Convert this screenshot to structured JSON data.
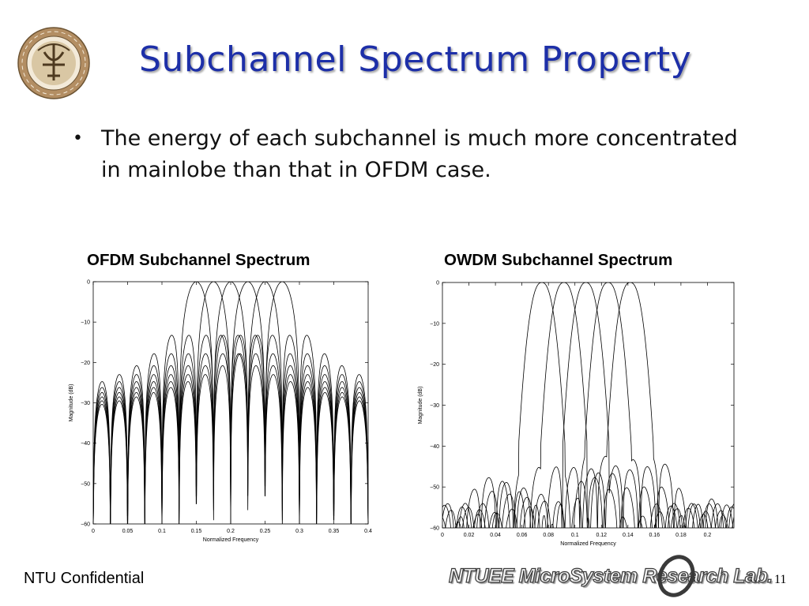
{
  "slide": {
    "title": "Subchannel Spectrum Property",
    "bullets": [
      "The energy of each subchannel is much more concentrated in mainlobe than that in OFDM case."
    ],
    "seal_text": "國立臺灣大學",
    "footer": {
      "confidential": "NTU Confidential",
      "lab_name": "NTUEE MicroSystem Research Lab.",
      "page_number": "11"
    }
  },
  "chart_data": [
    {
      "type": "line",
      "title": "OFDM Subchannel Spectrum",
      "xlabel": "Normalized Frequency",
      "ylabel": "Magnitude (dB)",
      "xlim": [
        0,
        0.4
      ],
      "ylim": [
        -60,
        0
      ],
      "xticks": [
        "0",
        "0.05",
        "0.1",
        "0.15",
        "0.2",
        "0.25",
        "0.3",
        "0.35",
        "0.4"
      ],
      "yticks": [
        "0",
        "−10",
        "−20",
        "−30",
        "−40",
        "−50",
        "−60"
      ],
      "grid": false,
      "subchannel_spacing": 0.025,
      "series": [
        {
          "center": 0.15
        },
        {
          "center": 0.175
        },
        {
          "center": 0.2
        },
        {
          "center": 0.225
        },
        {
          "center": 0.25
        },
        {
          "center": 0.275
        }
      ]
    },
    {
      "type": "line",
      "title": "OWDM Subchannel Spectrum",
      "xlabel": "Normalized Frequency",
      "ylabel": "Magnitude (dB)",
      "xlim": [
        0,
        0.22
      ],
      "ylim": [
        -60,
        0
      ],
      "xticks": [
        "0",
        "0.02",
        "0.04",
        "0.06",
        "0.08",
        "0.1",
        "0.12",
        "0.14",
        "0.16",
        "0.18",
        "0.2"
      ],
      "yticks": [
        "0",
        "−10",
        "−20",
        "−30",
        "−40",
        "−50",
        "−60"
      ],
      "grid": false,
      "subchannel_spacing": 0.0167,
      "series": [
        {
          "center": 0.075
        },
        {
          "center": 0.0917
        },
        {
          "center": 0.1083
        },
        {
          "center": 0.125
        },
        {
          "center": 0.1417
        }
      ]
    }
  ]
}
